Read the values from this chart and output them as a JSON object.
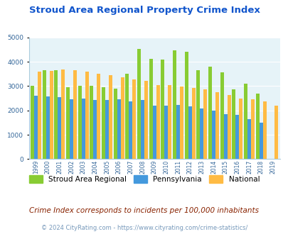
{
  "title": "Stroud Area Regional Property Crime Index",
  "years": [
    1999,
    2000,
    2001,
    2002,
    2003,
    2004,
    2005,
    2006,
    2007,
    2008,
    2009,
    2010,
    2011,
    2012,
    2013,
    2014,
    2015,
    2016,
    2017,
    2018,
    2019
  ],
  "stroud": [
    3000,
    3650,
    3650,
    2950,
    3000,
    3000,
    2950,
    2900,
    3500,
    4520,
    4130,
    4080,
    4480,
    4420,
    3650,
    3800,
    3560,
    2880,
    3100,
    2700,
    0
  ],
  "pennsylvania": [
    2600,
    2580,
    2550,
    2470,
    2480,
    2440,
    2440,
    2470,
    2380,
    2440,
    2200,
    2200,
    2230,
    2170,
    2070,
    1980,
    1840,
    1820,
    1650,
    1490,
    0
  ],
  "national": [
    3600,
    3620,
    3680,
    3650,
    3600,
    3520,
    3450,
    3350,
    3280,
    3220,
    3050,
    3050,
    2970,
    2920,
    2880,
    2750,
    2620,
    2500,
    2470,
    2370,
    2210
  ],
  "color_stroud": "#88cc33",
  "color_pennsylvania": "#4499dd",
  "color_national": "#ffbb44",
  "bg_color": "#e6f3f8",
  "title_color": "#1155cc",
  "ylim": [
    0,
    5000
  ],
  "footnote1": "Crime Index corresponds to incidents per 100,000 inhabitants",
  "footnote2": "© 2024 CityRating.com - https://www.cityrating.com/crime-statistics/",
  "footnote1_color": "#882200",
  "footnote2_color": "#7799bb"
}
